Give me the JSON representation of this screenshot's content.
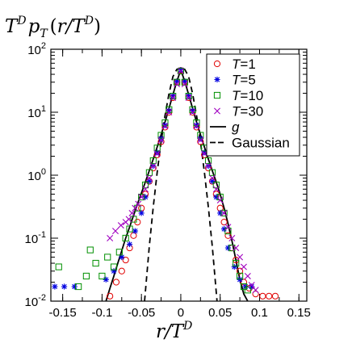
{
  "chart_data": {
    "type": "scatter",
    "title": "",
    "ylabel": "T^D p_T (r/T^D)",
    "xlabel": "r/T^D",
    "xlim": [
      -0.165,
      0.16
    ],
    "ylim": [
      0.01,
      100
    ],
    "yscale": "log",
    "grid": false,
    "legend_position": "top-right",
    "x_ticks": [
      -0.15,
      -0.1,
      -0.05,
      0,
      0.05,
      0.1,
      0.15
    ],
    "x_tick_labels": [
      "-0.15",
      "-0.1",
      "-0.05",
      "0",
      "0.05",
      "0.1",
      "0.15"
    ],
    "y_ticks": [
      0.01,
      0.1,
      1,
      10,
      100
    ],
    "y_tick_mantissa": "10",
    "y_tick_exponents": [
      "-2",
      "-1",
      "0",
      "1",
      "2"
    ],
    "series": [
      {
        "name": "T=1",
        "marker": "circle",
        "color": "#e00000",
        "x": [
          -0.09,
          -0.082,
          -0.075,
          -0.07,
          -0.065,
          -0.06,
          -0.055,
          -0.05,
          -0.045,
          -0.04,
          -0.035,
          -0.03,
          -0.025,
          -0.02,
          -0.015,
          -0.01,
          -0.005,
          0,
          0.005,
          0.01,
          0.015,
          0.02,
          0.025,
          0.03,
          0.035,
          0.04,
          0.045,
          0.05,
          0.055,
          0.06,
          0.065,
          0.07,
          0.075,
          0.08,
          0.087,
          0.095,
          0.104,
          0.112,
          0.12
        ],
        "y": [
          0.012,
          0.02,
          0.03,
          0.045,
          0.07,
          0.11,
          0.18,
          0.3,
          0.5,
          0.8,
          1.3,
          2.1,
          3.4,
          5.8,
          10,
          17,
          30,
          46,
          30,
          17,
          10,
          5.8,
          3.4,
          2.1,
          1.3,
          0.8,
          0.5,
          0.3,
          0.18,
          0.11,
          0.07,
          0.045,
          0.03,
          0.02,
          0.016,
          0.013,
          0.012,
          0.012,
          0.012
        ]
      },
      {
        "name": "T=5",
        "marker": "star",
        "color": "#0000e0",
        "x": [
          -0.16,
          -0.148,
          -0.135,
          -0.095,
          -0.085,
          -0.075,
          -0.065,
          -0.058,
          -0.05,
          -0.045,
          -0.04,
          -0.035,
          -0.03,
          -0.025,
          -0.02,
          -0.015,
          -0.01,
          -0.005,
          0,
          0.005,
          0.01,
          0.015,
          0.02,
          0.025,
          0.03,
          0.035,
          0.04,
          0.045,
          0.05,
          0.055,
          0.06,
          0.068,
          0.075,
          0.082,
          0.09
        ],
        "y": [
          0.017,
          0.017,
          0.017,
          0.022,
          0.03,
          0.05,
          0.08,
          0.13,
          0.25,
          0.45,
          0.8,
          1.4,
          2.3,
          3.8,
          6.2,
          10.5,
          18,
          31,
          47,
          31,
          18,
          10.5,
          6.2,
          3.8,
          2.3,
          1.4,
          0.8,
          0.45,
          0.25,
          0.14,
          0.07,
          0.035,
          0.022,
          0.017,
          0.017
        ]
      },
      {
        "name": "T=10",
        "marker": "square",
        "color": "#009000",
        "x": [
          -0.155,
          -0.13,
          -0.12,
          -0.115,
          -0.108,
          -0.1,
          -0.093,
          -0.085,
          -0.078,
          -0.07,
          -0.065,
          -0.06,
          -0.055,
          -0.05,
          -0.045,
          -0.04,
          -0.035,
          -0.03,
          -0.025,
          -0.02,
          -0.015,
          -0.01,
          -0.005,
          0,
          0.005,
          0.01,
          0.015,
          0.02,
          0.025,
          0.03,
          0.035,
          0.04,
          0.045,
          0.05,
          0.055,
          0.06,
          0.065,
          0.07,
          0.075,
          0.08,
          0.085
        ],
        "y": [
          0.035,
          0.017,
          0.025,
          0.065,
          0.04,
          0.025,
          0.05,
          0.035,
          0.06,
          0.1,
          0.14,
          0.2,
          0.3,
          0.45,
          0.7,
          1.1,
          1.7,
          2.7,
          4.3,
          6.8,
          11,
          18,
          30,
          45,
          30,
          18,
          11,
          6.8,
          4.3,
          2.7,
          1.7,
          1.1,
          0.7,
          0.45,
          0.25,
          0.13,
          0.07,
          0.04,
          0.025,
          0.017,
          0.015
        ]
      },
      {
        "name": "T=30",
        "marker": "x",
        "color": "#a000c0",
        "x": [
          -0.09,
          -0.083,
          -0.076,
          -0.07,
          -0.066,
          -0.062,
          -0.058,
          -0.054,
          -0.05,
          -0.045,
          -0.04,
          -0.035,
          -0.03,
          -0.025,
          -0.02,
          -0.015,
          -0.01,
          -0.005,
          0,
          0.005,
          0.01,
          0.015,
          0.02,
          0.025,
          0.03,
          0.035,
          0.04,
          0.045,
          0.05,
          0.055,
          0.06,
          0.065,
          0.07,
          0.075,
          0.08,
          0.085,
          0.09,
          0.095
        ],
        "y": [
          0.1,
          0.13,
          0.16,
          0.18,
          0.2,
          0.25,
          0.3,
          0.35,
          0.45,
          0.6,
          0.9,
          1.4,
          2.2,
          3.6,
          6,
          10,
          17,
          28,
          45,
          28,
          17,
          10,
          6,
          3.6,
          2.2,
          1.4,
          0.9,
          0.6,
          0.4,
          0.25,
          0.15,
          0.1,
          0.07,
          0.05,
          0.035,
          0.025,
          0.018,
          0.015
        ]
      },
      {
        "name": "g",
        "style": "solid-line",
        "color": "#000000",
        "x": [
          -0.095,
          -0.09,
          -0.085,
          -0.08,
          -0.075,
          -0.07,
          -0.065,
          -0.06,
          -0.055,
          -0.05,
          -0.045,
          -0.04,
          -0.035,
          -0.03,
          -0.025,
          -0.02,
          -0.015,
          -0.01,
          -0.005,
          0,
          0.005,
          0.01,
          0.015,
          0.02,
          0.025,
          0.03,
          0.035,
          0.04,
          0.045,
          0.05,
          0.055,
          0.06,
          0.065,
          0.07,
          0.075,
          0.08,
          0.085
        ],
        "y": [
          0.01,
          0.016,
          0.025,
          0.04,
          0.063,
          0.1,
          0.15,
          0.23,
          0.35,
          0.52,
          0.78,
          1.18,
          1.8,
          2.8,
          4.4,
          7,
          11.5,
          19,
          31,
          47,
          31,
          19,
          11.5,
          7,
          4.4,
          2.8,
          1.8,
          1.18,
          0.78,
          0.5,
          0.3,
          0.17,
          0.09,
          0.045,
          0.022,
          0.013,
          0.01
        ]
      },
      {
        "name": "Gaussian",
        "style": "dashed-line",
        "color": "#000000",
        "x": [
          -0.046,
          -0.04,
          -0.035,
          -0.03,
          -0.025,
          -0.02,
          -0.015,
          -0.01,
          -0.005,
          0,
          0.005,
          0.01,
          0.015,
          0.02,
          0.025,
          0.03,
          0.035,
          0.04,
          0.046
        ],
        "y": [
          0.01,
          0.074,
          0.31,
          1.11,
          3.4,
          8.9,
          19.7,
          36.7,
          48,
          50,
          48,
          36.7,
          19.7,
          8.9,
          3.4,
          1.11,
          0.31,
          0.074,
          0.01
        ]
      }
    ]
  }
}
